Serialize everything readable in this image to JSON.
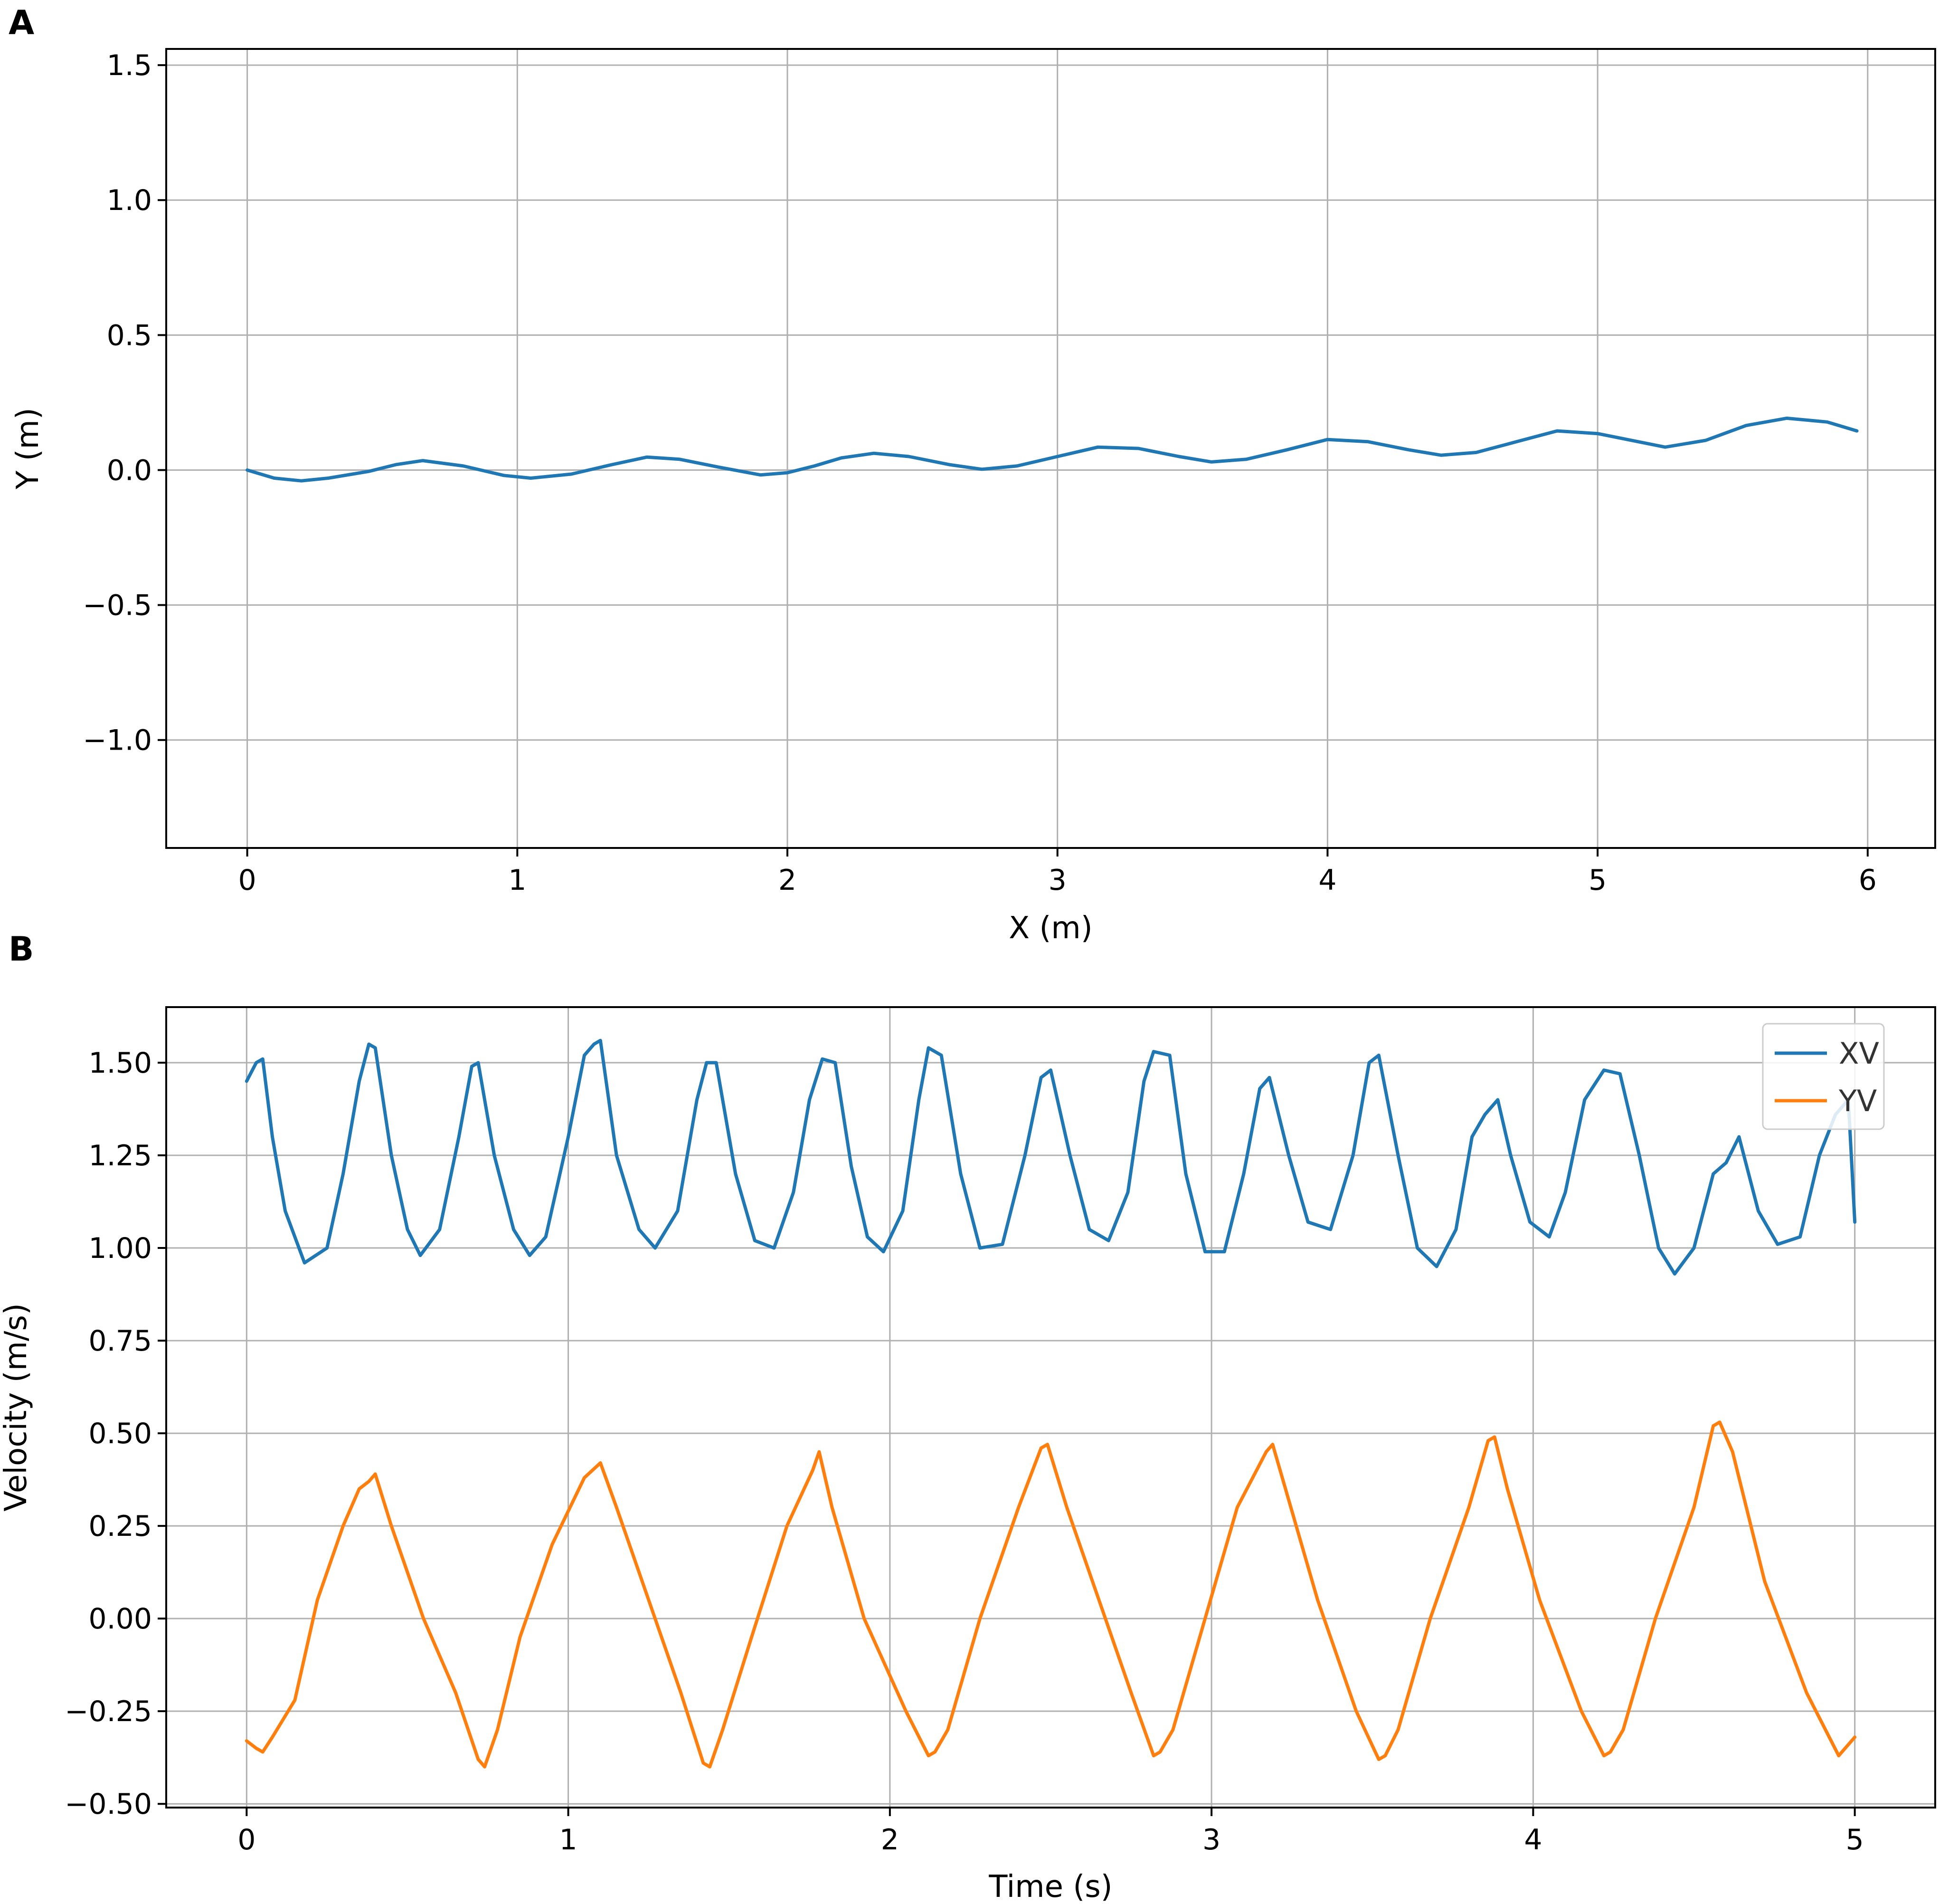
{
  "chart_data": [
    {
      "panel_label": "A",
      "type": "line",
      "xlabel": "X (m)",
      "ylabel": "Y (m)",
      "xlim": [
        -0.3,
        6.25
      ],
      "ylim": [
        -1.4,
        1.56
      ],
      "x_ticks": [
        0,
        1,
        2,
        3,
        4,
        5,
        6
      ],
      "x_tick_labels": [
        "0",
        "1",
        "2",
        "3",
        "4",
        "5",
        "6"
      ],
      "y_ticks": [
        -1.0,
        -0.5,
        0.0,
        0.5,
        1.0,
        1.5
      ],
      "y_tick_labels": [
        "−1.0",
        "−0.5",
        "0.0",
        "0.5",
        "1.0",
        "1.5"
      ],
      "grid": true,
      "series": [
        {
          "color": "#1f77b4",
          "x": [
            0.0,
            0.1,
            0.2,
            0.3,
            0.45,
            0.55,
            0.65,
            0.8,
            0.95,
            1.05,
            1.2,
            1.35,
            1.48,
            1.6,
            1.75,
            1.9,
            2.0,
            2.1,
            2.2,
            2.32,
            2.45,
            2.6,
            2.72,
            2.85,
            3.0,
            3.15,
            3.3,
            3.45,
            3.57,
            3.7,
            3.85,
            4.0,
            4.15,
            4.3,
            4.42,
            4.55,
            4.7,
            4.85,
            5.0,
            5.1,
            5.25,
            5.4,
            5.55,
            5.7,
            5.85,
            5.96
          ],
          "y": [
            0.0,
            -0.03,
            -0.04,
            -0.03,
            -0.005,
            0.02,
            0.035,
            0.015,
            -0.02,
            -0.03,
            -0.015,
            0.02,
            0.048,
            0.04,
            0.01,
            -0.018,
            -0.01,
            0.015,
            0.045,
            0.062,
            0.05,
            0.02,
            0.003,
            0.015,
            0.05,
            0.085,
            0.08,
            0.05,
            0.03,
            0.04,
            0.075,
            0.113,
            0.105,
            0.075,
            0.055,
            0.065,
            0.105,
            0.145,
            0.135,
            0.115,
            0.085,
            0.11,
            0.165,
            0.192,
            0.178,
            0.145
          ]
        }
      ]
    },
    {
      "panel_label": "B",
      "type": "line",
      "xlabel": "Time (s)",
      "ylabel": "Velocity (m/s)",
      "xlim": [
        -0.25,
        5.25
      ],
      "ylim": [
        -0.51,
        1.65
      ],
      "x_ticks": [
        0,
        1,
        2,
        3,
        4,
        5
      ],
      "x_tick_labels": [
        "0",
        "1",
        "2",
        "3",
        "4",
        "5"
      ],
      "y_ticks": [
        -0.5,
        -0.25,
        0.0,
        0.25,
        0.5,
        0.75,
        1.0,
        1.25,
        1.5
      ],
      "y_tick_labels": [
        "−0.50",
        "−0.25",
        "0.00",
        "0.25",
        "0.50",
        "0.75",
        "1.00",
        "1.25",
        "1.50"
      ],
      "grid": true,
      "legend": "top-right",
      "series": [
        {
          "name": "XV",
          "color": "#1f77b4",
          "x": [
            0.0,
            0.03,
            0.05,
            0.08,
            0.12,
            0.18,
            0.25,
            0.3,
            0.35,
            0.38,
            0.4,
            0.45,
            0.5,
            0.54,
            0.6,
            0.66,
            0.7,
            0.72,
            0.77,
            0.83,
            0.88,
            0.93,
            1.0,
            1.05,
            1.08,
            1.1,
            1.15,
            1.22,
            1.27,
            1.34,
            1.4,
            1.43,
            1.46,
            1.52,
            1.58,
            1.64,
            1.7,
            1.75,
            1.79,
            1.83,
            1.88,
            1.93,
            1.98,
            2.04,
            2.09,
            2.12,
            2.16,
            2.22,
            2.28,
            2.35,
            2.42,
            2.47,
            2.5,
            2.56,
            2.62,
            2.68,
            2.74,
            2.79,
            2.82,
            2.87,
            2.92,
            2.98,
            3.04,
            3.1,
            3.15,
            3.18,
            3.24,
            3.3,
            3.37,
            3.44,
            3.49,
            3.52,
            3.58,
            3.64,
            3.7,
            3.76,
            3.81,
            3.85,
            3.89,
            3.93,
            3.99,
            4.05,
            4.1,
            4.16,
            4.22,
            4.27,
            4.33,
            4.39,
            4.44,
            4.5,
            4.56,
            4.6,
            4.64,
            4.7,
            4.76,
            4.83,
            4.89,
            4.94,
            4.98,
            5.0
          ],
          "y": [
            1.45,
            1.5,
            1.51,
            1.3,
            1.1,
            0.96,
            1.0,
            1.2,
            1.45,
            1.55,
            1.54,
            1.25,
            1.05,
            0.98,
            1.05,
            1.3,
            1.49,
            1.5,
            1.25,
            1.05,
            0.98,
            1.03,
            1.3,
            1.52,
            1.55,
            1.56,
            1.25,
            1.05,
            1.0,
            1.1,
            1.4,
            1.5,
            1.5,
            1.2,
            1.02,
            1.0,
            1.15,
            1.4,
            1.51,
            1.5,
            1.22,
            1.03,
            0.99,
            1.1,
            1.4,
            1.54,
            1.52,
            1.2,
            1.0,
            1.01,
            1.25,
            1.46,
            1.48,
            1.25,
            1.05,
            1.02,
            1.15,
            1.45,
            1.53,
            1.52,
            1.2,
            0.99,
            0.99,
            1.2,
            1.43,
            1.46,
            1.25,
            1.07,
            1.05,
            1.25,
            1.5,
            1.52,
            1.25,
            1.0,
            0.95,
            1.05,
            1.3,
            1.36,
            1.4,
            1.25,
            1.07,
            1.03,
            1.15,
            1.4,
            1.48,
            1.47,
            1.25,
            1.0,
            0.93,
            1.0,
            1.2,
            1.23,
            1.3,
            1.1,
            1.01,
            1.03,
            1.25,
            1.36,
            1.4,
            1.07
          ]
        },
        {
          "name": "YV",
          "color": "#ff7f0e",
          "x": [
            0.0,
            0.03,
            0.05,
            0.08,
            0.15,
            0.22,
            0.3,
            0.35,
            0.38,
            0.4,
            0.45,
            0.55,
            0.65,
            0.72,
            0.74,
            0.78,
            0.85,
            0.95,
            1.05,
            1.1,
            1.15,
            1.25,
            1.35,
            1.42,
            1.44,
            1.48,
            1.57,
            1.68,
            1.76,
            1.78,
            1.82,
            1.92,
            2.05,
            2.12,
            2.14,
            2.18,
            2.28,
            2.4,
            2.47,
            2.49,
            2.55,
            2.65,
            2.75,
            2.82,
            2.84,
            2.88,
            2.98,
            3.08,
            3.17,
            3.19,
            3.23,
            3.33,
            3.45,
            3.52,
            3.54,
            3.58,
            3.68,
            3.8,
            3.86,
            3.88,
            3.92,
            4.02,
            4.15,
            4.22,
            4.24,
            4.28,
            4.38,
            4.5,
            4.56,
            4.58,
            4.62,
            4.72,
            4.85,
            4.95,
            5.0
          ],
          "y": [
            -0.33,
            -0.35,
            -0.36,
            -0.32,
            -0.22,
            0.05,
            0.25,
            0.35,
            0.37,
            0.39,
            0.25,
            0.0,
            -0.2,
            -0.38,
            -0.4,
            -0.3,
            -0.05,
            0.2,
            0.38,
            0.42,
            0.3,
            0.05,
            -0.2,
            -0.39,
            -0.4,
            -0.3,
            -0.05,
            0.25,
            0.4,
            0.45,
            0.3,
            0.0,
            -0.25,
            -0.37,
            -0.36,
            -0.3,
            0.0,
            0.3,
            0.46,
            0.47,
            0.3,
            0.05,
            -0.2,
            -0.37,
            -0.36,
            -0.3,
            0.0,
            0.3,
            0.45,
            0.47,
            0.35,
            0.05,
            -0.25,
            -0.38,
            -0.37,
            -0.3,
            0.0,
            0.3,
            0.48,
            0.49,
            0.35,
            0.05,
            -0.25,
            -0.37,
            -0.36,
            -0.3,
            0.0,
            0.3,
            0.52,
            0.53,
            0.45,
            0.1,
            -0.2,
            -0.37,
            -0.32
          ]
        }
      ]
    }
  ]
}
